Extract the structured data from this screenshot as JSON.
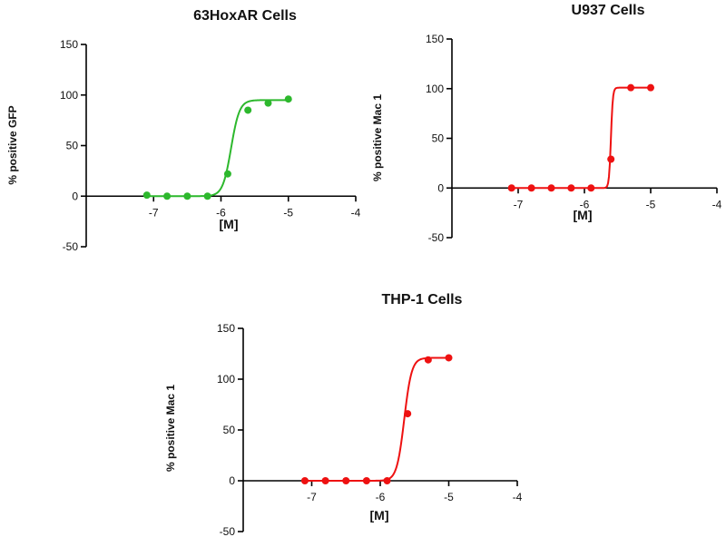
{
  "chart_data": [
    {
      "type": "line",
      "title": "63HoxAR Cells",
      "xlabel": "[M]",
      "ylabel": "% positive GFP",
      "xlim": [
        -8,
        -4
      ],
      "ylim": [
        -50,
        150
      ],
      "xticks": [
        "-7",
        "-6",
        "-5",
        "-4"
      ],
      "yticks": [
        "-50",
        "0",
        "50",
        "100",
        "150"
      ],
      "color": "#2db82d",
      "fit": {
        "bottom": 0,
        "top": 95,
        "logEC50": -5.85,
        "hill": 7
      },
      "series": [
        {
          "x": [
            -7.1,
            -6.8,
            -6.5,
            -6.2,
            -5.9,
            -5.6,
            -5.3,
            -5.0
          ],
          "y": [
            1,
            0,
            0,
            0,
            22,
            85,
            92,
            96
          ]
        }
      ]
    },
    {
      "type": "line",
      "title": "U937 Cells",
      "xlabel": "[M]",
      "ylabel": "% positive Mac 1",
      "xlim": [
        -8,
        -4
      ],
      "ylim": [
        -50,
        150
      ],
      "xticks": [
        "-7",
        "-6",
        "-5",
        "-4"
      ],
      "yticks": [
        "-50",
        "0",
        "50",
        "100",
        "150"
      ],
      "color": "#ee1111",
      "fit": {
        "bottom": 0,
        "top": 101,
        "logEC50": -5.6,
        "hill": 30
      },
      "series": [
        {
          "x": [
            -7.1,
            -6.8,
            -6.5,
            -6.2,
            -5.9,
            -5.6,
            -5.3,
            -5.0
          ],
          "y": [
            0,
            0,
            0,
            0,
            0,
            29,
            101,
            101
          ]
        }
      ]
    },
    {
      "type": "line",
      "title": "THP-1 Cells",
      "xlabel": "[M]",
      "ylabel": "% positive Mac 1",
      "xlim": [
        -8,
        -4
      ],
      "ylim": [
        -50,
        150
      ],
      "xticks": [
        "-7",
        "-6",
        "-5",
        "-4"
      ],
      "yticks": [
        "-50",
        "0",
        "50",
        "100",
        "150"
      ],
      "color": "#ee1111",
      "fit": {
        "bottom": 0,
        "top": 121,
        "logEC50": -5.65,
        "hill": 8
      },
      "series": [
        {
          "x": [
            -7.1,
            -6.8,
            -6.5,
            -6.2,
            -5.9,
            -5.6,
            -5.3,
            -5.0
          ],
          "y": [
            0,
            0,
            0,
            0,
            0,
            66,
            119,
            121
          ]
        }
      ]
    }
  ]
}
